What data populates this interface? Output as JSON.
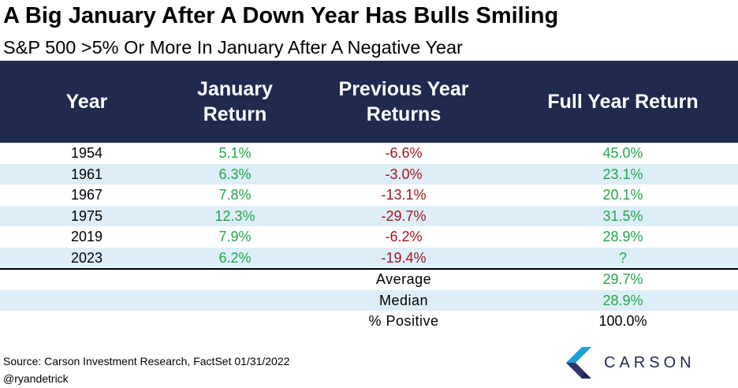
{
  "title": "A Big January After A Down Year Has Bulls Smiling",
  "subtitle": "S&P 500 >5% Or More In January After A Negative Year",
  "colors": {
    "header_bg": "#1f2a4e",
    "positive": "#22a64a",
    "negative": "#a3141b",
    "alt_row": "#ddeef9"
  },
  "chart_data": {
    "type": "table",
    "columns": [
      {
        "line1": "Year",
        "line2": ""
      },
      {
        "line1": "January",
        "line2": "Return"
      },
      {
        "line1": "Previous Year",
        "line2": "Returns"
      },
      {
        "line1": "Full Year Return",
        "line2": ""
      }
    ],
    "rows": [
      {
        "year": "1954",
        "january": "5.1%",
        "previous": "-6.6%",
        "full": "45.0%"
      },
      {
        "year": "1961",
        "january": "6.3%",
        "previous": "-3.0%",
        "full": "23.1%"
      },
      {
        "year": "1967",
        "january": "7.8%",
        "previous": "-13.1%",
        "full": "20.1%"
      },
      {
        "year": "1975",
        "january": "12.3%",
        "previous": "-29.7%",
        "full": "31.5%"
      },
      {
        "year": "2019",
        "january": "7.9%",
        "previous": "-6.2%",
        "full": "28.9%"
      },
      {
        "year": "2023",
        "january": "6.2%",
        "previous": "-19.4%",
        "full": "?"
      }
    ],
    "summary": [
      {
        "label": "Average",
        "value": "29.7%"
      },
      {
        "label": "Median",
        "value": "28.9%"
      },
      {
        "label": "% Positive",
        "value": "100.0%"
      }
    ]
  },
  "footer": {
    "source": "Source: Carson Investment Research, FactSet 01/31/2022",
    "handle": "@ryandetrick"
  },
  "logo": {
    "text": "CARSON",
    "icon": "carson-chevron-icon"
  }
}
